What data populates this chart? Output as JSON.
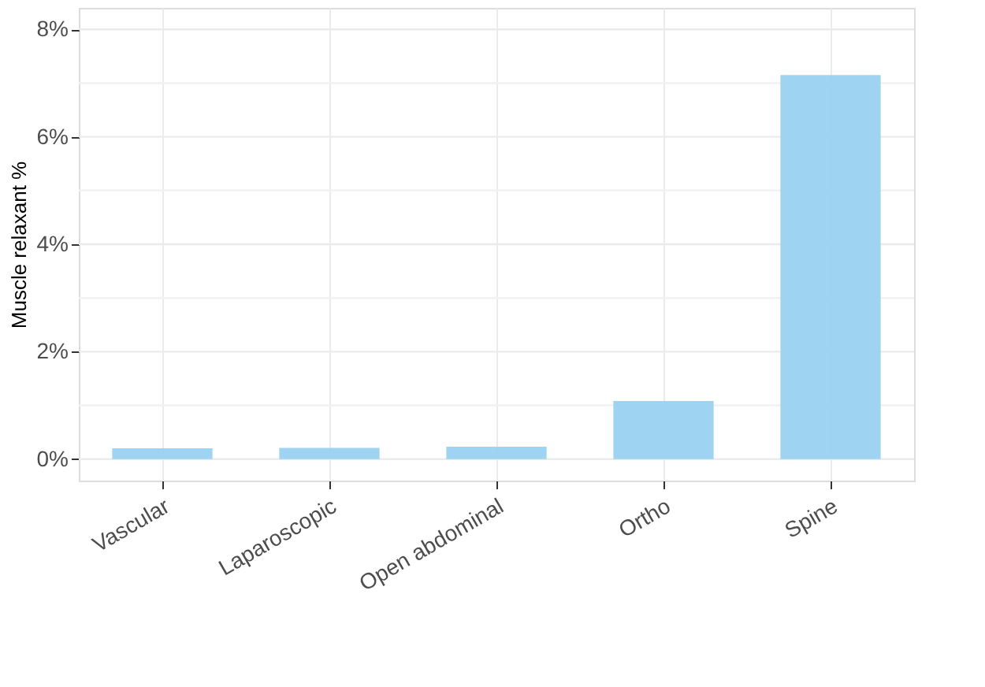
{
  "chart_data": {
    "type": "bar",
    "ylabel": "Muscle relaxant %",
    "categories": [
      "Vascular",
      "Laparoscopic",
      "Open abdominal",
      "Ortho",
      "Spine"
    ],
    "values": [
      0.2,
      0.21,
      0.23,
      1.08,
      7.15
    ],
    "color": "#99d1f0",
    "ylim": [
      -0.4,
      8.4
    ],
    "yticks": [
      {
        "value": 0,
        "label": "0%"
      },
      {
        "value": 1,
        "label": null
      },
      {
        "value": 2,
        "label": "2%"
      },
      {
        "value": 3,
        "label": null
      },
      {
        "value": 4,
        "label": "4%"
      },
      {
        "value": 5,
        "label": null
      },
      {
        "value": 6,
        "label": "6%"
      },
      {
        "value": 7,
        "label": null
      },
      {
        "value": 8,
        "label": "8%"
      }
    ],
    "grid": true
  }
}
